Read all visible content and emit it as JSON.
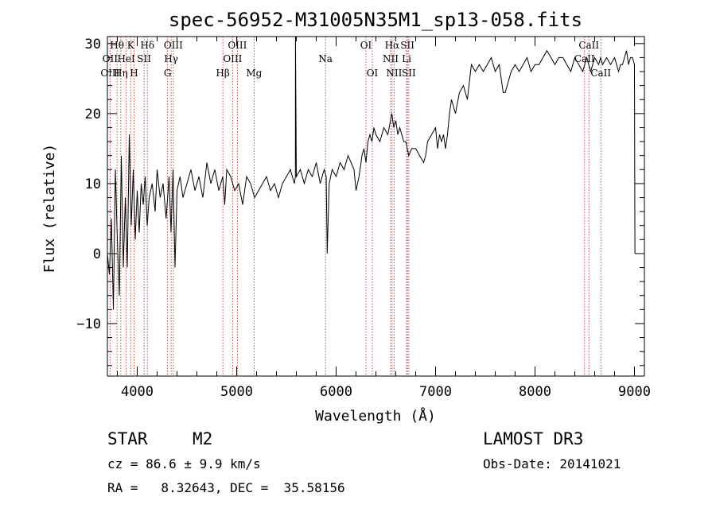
{
  "chart_data": {
    "type": "line",
    "title": "spec-56952-M31005N35M1_sp13-058.fits",
    "xlabel": "Wavelength (Å)",
    "ylabel": "Flux (relative)",
    "xlim": [
      3700,
      9100
    ],
    "ylim": [
      -17.5,
      31
    ],
    "xticks": [
      4000,
      5000,
      6000,
      7000,
      8000,
      9000
    ],
    "yticks": [
      -10,
      0,
      10,
      20,
      30
    ],
    "series": [
      {
        "name": "spectrum",
        "x": [
          3700,
          3720,
          3740,
          3760,
          3780,
          3800,
          3820,
          3840,
          3860,
          3880,
          3900,
          3920,
          3940,
          3960,
          3980,
          4000,
          4020,
          4040,
          4060,
          4080,
          4100,
          4120,
          4150,
          4180,
          4200,
          4230,
          4260,
          4290,
          4320,
          4340,
          4360,
          4380,
          4400,
          4430,
          4460,
          4500,
          4540,
          4580,
          4620,
          4660,
          4700,
          4740,
          4780,
          4820,
          4860,
          4880,
          4900,
          4940,
          4980,
          5020,
          5060,
          5100,
          5140,
          5180,
          5220,
          5260,
          5300,
          5340,
          5380,
          5420,
          5460,
          5500,
          5540,
          5580,
          5590,
          5591,
          5600,
          5640,
          5680,
          5720,
          5760,
          5800,
          5840,
          5880,
          5900,
          5910,
          5930,
          5960,
          6000,
          6040,
          6080,
          6120,
          6150,
          6180,
          6200,
          6230,
          6260,
          6280,
          6300,
          6320,
          6340,
          6360,
          6380,
          6400,
          6440,
          6480,
          6520,
          6560,
          6580,
          6600,
          6620,
          6640,
          6660,
          6680,
          6700,
          6730,
          6760,
          6800,
          6840,
          6880,
          6900,
          6920,
          6960,
          7000,
          7020,
          7040,
          7060,
          7080,
          7100,
          7120,
          7140,
          7160,
          7180,
          7200,
          7240,
          7280,
          7320,
          7360,
          7400,
          7440,
          7480,
          7520,
          7560,
          7600,
          7640,
          7660,
          7680,
          7700,
          7720,
          7760,
          7800,
          7840,
          7880,
          7920,
          7960,
          8000,
          8040,
          8080,
          8120,
          8160,
          8200,
          8240,
          8280,
          8320,
          8360,
          8400,
          8440,
          8480,
          8500,
          8520,
          8540,
          8560,
          8600,
          8640,
          8660,
          8680,
          8720,
          8760,
          8800,
          8840,
          8860,
          8880,
          8900,
          8920,
          8940,
          8960,
          8980,
          9000,
          9005
        ],
        "y": [
          0,
          -3,
          5,
          -8,
          12,
          2,
          -6,
          14,
          -2,
          8,
          -2,
          17,
          4,
          12,
          2,
          9,
          3,
          10,
          7,
          11,
          4,
          8,
          10,
          6,
          12,
          8,
          10,
          5,
          11,
          3,
          12,
          -2,
          9,
          11,
          8,
          10,
          12,
          9,
          11,
          8,
          13,
          10,
          12,
          9,
          11,
          7,
          12,
          11,
          9,
          10,
          7,
          11,
          10,
          8,
          9,
          10,
          11,
          9,
          10,
          8,
          10,
          11,
          12,
          10,
          11,
          31,
          11,
          12,
          10,
          12,
          11,
          13,
          10,
          12,
          11,
          0,
          10,
          12,
          11,
          13,
          12,
          14,
          13,
          12,
          9,
          11,
          14,
          15,
          13,
          16,
          17,
          16,
          18,
          17,
          16,
          18,
          17,
          20,
          18,
          19,
          17,
          18,
          17,
          16,
          16,
          14,
          15,
          15,
          14,
          13,
          14,
          16,
          17,
          18,
          15,
          17,
          16,
          17,
          15,
          17,
          20,
          22,
          21,
          20,
          23,
          24,
          22,
          27,
          26,
          27,
          26,
          27,
          28,
          26,
          27,
          25,
          23,
          23,
          24,
          26,
          27,
          26,
          27,
          28,
          26,
          27,
          27,
          28,
          29,
          28,
          27,
          28,
          28,
          27,
          26,
          28,
          27,
          26,
          27,
          28,
          27,
          26,
          28,
          27,
          28,
          27,
          28,
          27,
          28,
          26,
          27,
          27,
          28,
          29,
          27,
          28,
          28,
          27,
          0
        ]
      }
    ],
    "emission_lines": [
      {
        "label": "Hθ",
        "wavelength": 3797,
        "row": 1
      },
      {
        "label": "OII",
        "wavelength": 3727,
        "row": 2
      },
      {
        "label": "OIII",
        "wavelength": 3727,
        "row": 3
      },
      {
        "label": "Hη",
        "wavelength": 3835,
        "row": 3
      },
      {
        "label": "K",
        "wavelength": 3934,
        "row": 1
      },
      {
        "label": "HeI",
        "wavelength": 3889,
        "row": 2
      },
      {
        "label": "H",
        "wavelength": 3968,
        "row": 3
      },
      {
        "label": "SII",
        "wavelength": 4069,
        "row": 2
      },
      {
        "label": "Hδ",
        "wavelength": 4102,
        "row": 1
      },
      {
        "label": "OIII",
        "wavelength": 4363,
        "row": 1
      },
      {
        "label": "Hγ",
        "wavelength": 4341,
        "row": 2
      },
      {
        "label": "G",
        "wavelength": 4305,
        "row": 3
      },
      {
        "label": "OIII",
        "wavelength": 5007,
        "row": 1
      },
      {
        "label": "OIII",
        "wavelength": 4959,
        "row": 2
      },
      {
        "label": "Hβ",
        "wavelength": 4861,
        "row": 3
      },
      {
        "label": "Mg",
        "wavelength": 5175,
        "row": 3
      },
      {
        "label": "Na",
        "wavelength": 5893,
        "row": 2
      },
      {
        "label": "OI",
        "wavelength": 6300,
        "row": 1
      },
      {
        "label": "OI",
        "wavelength": 6364,
        "row": 3
      },
      {
        "label": "Hα",
        "wavelength": 6563,
        "row": 1
      },
      {
        "label": "SII",
        "wavelength": 6717,
        "row": 1
      },
      {
        "label": "NII",
        "wavelength": 6548,
        "row": 2
      },
      {
        "label": "Li",
        "wavelength": 6708,
        "row": 2
      },
      {
        "label": "NII",
        "wavelength": 6583,
        "row": 3
      },
      {
        "label": "SII",
        "wavelength": 6731,
        "row": 3
      },
      {
        "label": "CaII",
        "wavelength": 8542,
        "row": 1
      },
      {
        "label": "CaII",
        "wavelength": 8498,
        "row": 2
      },
      {
        "label": "CaII",
        "wavelength": 8662,
        "row": 3
      }
    ],
    "colors": {
      "line": "#000000",
      "marker_lines": "#b22222"
    }
  },
  "info": {
    "object_class": "STAR",
    "subclass": "M2",
    "survey": "LAMOST DR3",
    "cz": "cz = 86.6 ± 9.9 km/s",
    "obs_date": "Obs-Date: 20141021",
    "coords": "RA =   8.32643, DEC =  35.58156"
  }
}
